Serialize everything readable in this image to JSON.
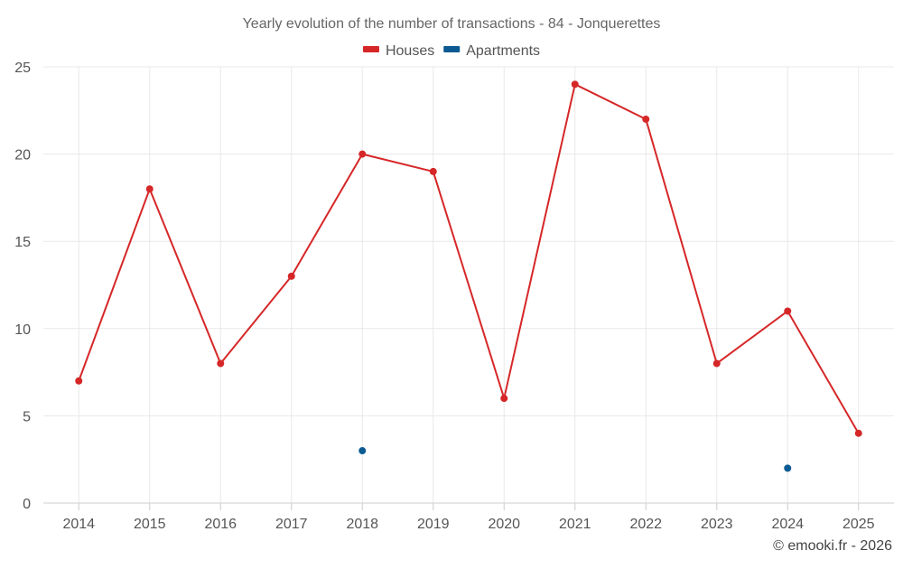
{
  "chart_data": {
    "type": "line",
    "title": "Yearly evolution of the number of transactions - 84 - Jonquerettes",
    "xlabel": "",
    "ylabel": "",
    "categories": [
      "2014",
      "2015",
      "2016",
      "2017",
      "2018",
      "2019",
      "2020",
      "2021",
      "2022",
      "2023",
      "2024",
      "2025"
    ],
    "ylim": [
      0,
      25
    ],
    "yticks": [
      0,
      5,
      10,
      15,
      20,
      25
    ],
    "grid": true,
    "legend_position": "top-center",
    "series": [
      {
        "name": "Houses",
        "color": "#d62728",
        "values": [
          7,
          18,
          8,
          13,
          20,
          19,
          6,
          24,
          22,
          8,
          11,
          4
        ]
      },
      {
        "name": "Apartments",
        "color": "#0b5a91",
        "values": [
          null,
          null,
          null,
          null,
          3,
          null,
          null,
          null,
          null,
          null,
          2,
          null
        ]
      }
    ],
    "credit": "© emooki.fr - 2026"
  }
}
